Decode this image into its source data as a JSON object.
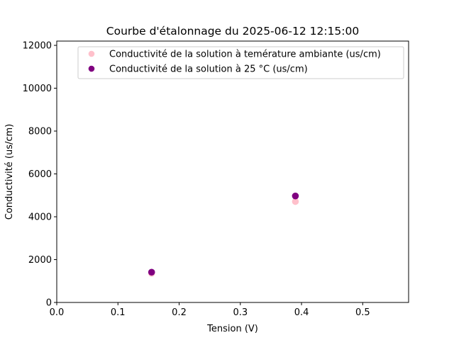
{
  "chart_data": {
    "type": "scatter",
    "title": "Courbe d'étalonnage du 2025-06-12 12:15:00",
    "xlabel": "Tension (V)",
    "ylabel": "Conductivité (us/cm)",
    "xlim": [
      0,
      0.575
    ],
    "ylim": [
      0,
      12200
    ],
    "x_ticks": [
      0.0,
      0.1,
      0.2,
      0.3,
      0.4,
      0.5
    ],
    "x_tick_labels": [
      "0.0",
      "0.1",
      "0.2",
      "0.3",
      "0.4",
      "0.5"
    ],
    "y_ticks": [
      0,
      2000,
      4000,
      6000,
      8000,
      10000,
      12000
    ],
    "y_tick_labels": [
      "0",
      "2000",
      "4000",
      "6000",
      "8000",
      "10000",
      "12000"
    ],
    "grid": false,
    "legend_position": "top-right",
    "series": [
      {
        "name": "Conductivité de la solution à temérature ambiante (us/cm)",
        "color": "#ffc0cb",
        "marker": "circle",
        "points": [
          {
            "x": 0.155,
            "y": 1360
          },
          {
            "x": 0.39,
            "y": 4710
          }
        ]
      },
      {
        "name": "Conductivité de la solution à 25 °C (us/cm)",
        "color": "#800080",
        "marker": "circle",
        "points": [
          {
            "x": 0.155,
            "y": 1413
          },
          {
            "x": 0.39,
            "y": 4970
          }
        ]
      }
    ]
  }
}
